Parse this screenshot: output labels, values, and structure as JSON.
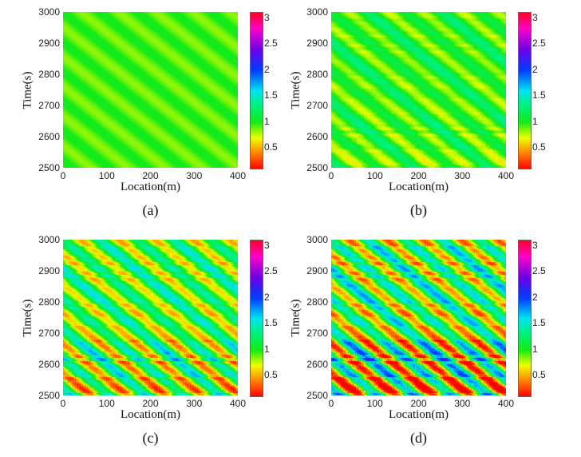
{
  "chart_data": [
    {
      "type": "heatmap",
      "panel_label": "(a)",
      "xlabel": "Location(m)",
      "ylabel": "Time(s)",
      "xlim": [
        0,
        400
      ],
      "ylim": [
        2500,
        3000
      ],
      "xticks": [
        "0",
        "100",
        "200",
        "300",
        "400"
      ],
      "yticks": [
        "2500",
        "2600",
        "2700",
        "2800",
        "2900",
        "3000"
      ],
      "colorbar": {
        "range": [
          0.1,
          3.1
        ],
        "ticks": [
          "0.5",
          "1",
          "1.5",
          "2",
          "2.5",
          "3"
        ]
      },
      "value_range_approx": [
        0.8,
        1.1
      ],
      "pattern": "smooth diagonal stripes"
    },
    {
      "type": "heatmap",
      "panel_label": "(b)",
      "xlabel": "Location(m)",
      "ylabel": "Time(s)",
      "xlim": [
        0,
        400
      ],
      "ylim": [
        2500,
        3000
      ],
      "xticks": [
        "0",
        "100",
        "200",
        "300",
        "400"
      ],
      "yticks": [
        "2500",
        "2600",
        "2700",
        "2800",
        "2900",
        "3000"
      ],
      "colorbar": {
        "range": [
          0.1,
          3.1
        ],
        "ticks": [
          "0.5",
          "1",
          "1.5",
          "2",
          "2.5",
          "3"
        ]
      },
      "value_range_approx": [
        0.7,
        1.4
      ],
      "pattern": "diagonal stripes with mild noise"
    },
    {
      "type": "heatmap",
      "panel_label": "(c)",
      "xlabel": "Location(m)",
      "ylabel": "Time(s)",
      "xlim": [
        0,
        400
      ],
      "ylim": [
        2500,
        3000
      ],
      "xticks": [
        "0",
        "100",
        "200",
        "300",
        "400"
      ],
      "yticks": [
        "2500",
        "2600",
        "2700",
        "2800",
        "2900",
        "3000"
      ],
      "colorbar": {
        "range": [
          0.1,
          3.1
        ],
        "ticks": [
          "0.5",
          "1",
          "1.5",
          "2",
          "2.5",
          "3"
        ]
      },
      "value_range_approx": [
        0.3,
        2.0
      ],
      "pattern": "diagonal stripes, stronger below 2650 s"
    },
    {
      "type": "heatmap",
      "panel_label": "(d)",
      "xlabel": "Location(m)",
      "ylabel": "Time(s)",
      "xlim": [
        0,
        400
      ],
      "ylim": [
        2500,
        3000
      ],
      "xticks": [
        "0",
        "100",
        "200",
        "300",
        "400"
      ],
      "yticks": [
        "2500",
        "2600",
        "2700",
        "2800",
        "2900",
        "3000"
      ],
      "colorbar": {
        "range": [
          0.1,
          3.1
        ],
        "ticks": [
          "0.5",
          "1",
          "1.5",
          "2",
          "2.5",
          "3"
        ]
      },
      "value_range_approx": [
        0.1,
        2.3
      ],
      "pattern": "strong diagonal stripes and banding, strongest below 2700 s"
    }
  ]
}
